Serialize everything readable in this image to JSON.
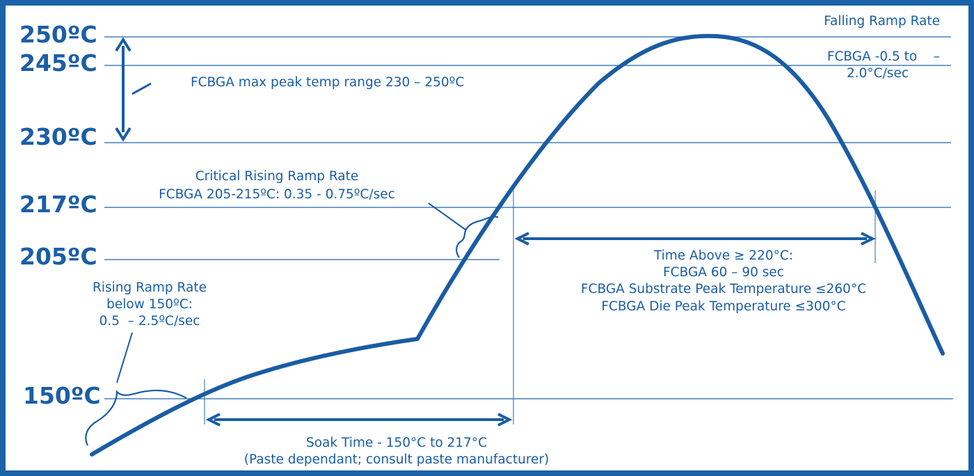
{
  "colors": {
    "primary": "#1b5ea6",
    "frame": "#1b62a8",
    "background": "#ffffff"
  },
  "temperature_labels": {
    "t250": "250ºC",
    "t245": "245ºC",
    "t230": "230ºC",
    "t217": "217ºC",
    "t205": "205ºC",
    "t150": "150ºC"
  },
  "annotations": {
    "falling_ramp": {
      "title": "Falling Ramp Rate",
      "line1": "FCBGA -0.5 to    –",
      "line2": "2.0°C/sec"
    },
    "max_peak": "FCBGA max peak temp range 230 – 250ºC",
    "critical_ramp": {
      "line1": "Critical Rising Ramp Rate",
      "line2": "FCBGA 205-215ºC: 0.35 - 0.75ºC/sec"
    },
    "time_above": {
      "line1": "Time Above ≥ 220°C:",
      "line2": "FCBGA 60 – 90 sec",
      "line3": "FCBGA Substrate Peak Temperature ≤260°C",
      "line4": "FCBGA Die Peak Temperature ≤300°C"
    },
    "rising_ramp": {
      "line1": "Rising Ramp Rate",
      "line2": "below 150ºC:",
      "line3": "0.5  – 2.5ºC/sec"
    },
    "soak": {
      "line1": "Soak Time - 150°C to 217°C",
      "line2": "(Paste dependant; consult paste manufacturer)"
    }
  }
}
